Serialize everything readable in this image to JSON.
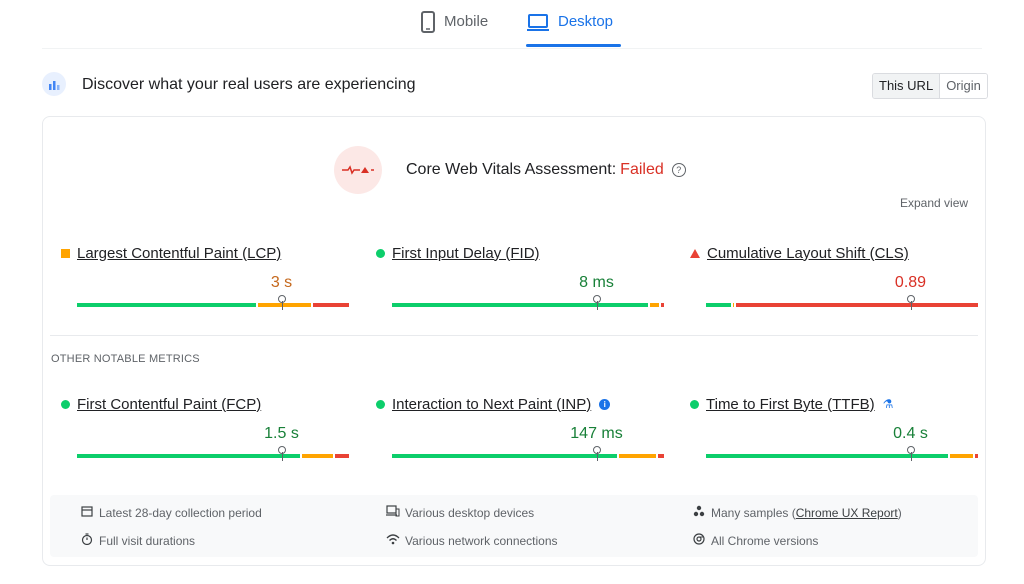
{
  "tabs": {
    "mobile": "Mobile",
    "desktop": "Desktop",
    "active": "Desktop"
  },
  "header": {
    "title": "Discover what your real users are experiencing",
    "scope": {
      "this_url": "This URL",
      "origin": "Origin",
      "active": "This URL"
    }
  },
  "assessment": {
    "label": "Core Web Vitals Assessment:",
    "status": "Failed",
    "expand": "Expand view"
  },
  "core_metrics": [
    {
      "name": "Largest Contentful Paint (LCP)",
      "value": "3 s",
      "rating": "needs-improvement",
      "indicator": "square",
      "distribution": {
        "good": 0.66,
        "needs_improvement": 0.2,
        "poor": 0.14
      },
      "marker": 0.75
    },
    {
      "name": "First Input Delay (FID)",
      "value": "8 ms",
      "rating": "good",
      "indicator": "dot",
      "distribution": {
        "good": 0.94,
        "needs_improvement": 0.04,
        "poor": 0.02
      },
      "marker": 0.75
    },
    {
      "name": "Cumulative Layout Shift (CLS)",
      "value": "0.89",
      "rating": "poor",
      "indicator": "triangle",
      "distribution": {
        "good": 0.1,
        "needs_improvement": 0.01,
        "poor": 0.89
      },
      "marker": 0.75
    }
  ],
  "other_label": "OTHER NOTABLE METRICS",
  "other_metrics": [
    {
      "name": "First Contentful Paint (FCP)",
      "value": "1.5 s",
      "rating": "good",
      "indicator": "dot",
      "distribution": {
        "good": 0.82,
        "needs_improvement": 0.12,
        "poor": 0.06
      },
      "marker": 0.75,
      "extra": ""
    },
    {
      "name": "Interaction to Next Paint (INP)",
      "value": "147 ms",
      "rating": "good",
      "indicator": "dot",
      "distribution": {
        "good": 0.83,
        "needs_improvement": 0.14,
        "poor": 0.03
      },
      "marker": 0.75,
      "extra": "info-icon"
    },
    {
      "name": "Time to First Byte (TTFB)",
      "value": "0.4 s",
      "rating": "good",
      "indicator": "dot",
      "distribution": {
        "good": 0.89,
        "needs_improvement": 0.09,
        "poor": 0.02
      },
      "marker": 0.75,
      "extra": "lab-icon"
    }
  ],
  "footer": {
    "collection": "Latest 28-day collection period",
    "durations": "Full visit durations",
    "devices": "Various desktop devices",
    "network": "Various network connections",
    "samples_prefix": "Many samples (",
    "samples_link": "Chrome UX Report",
    "samples_suffix": ")",
    "chrome": "All Chrome versions"
  },
  "colors": {
    "good": "#0cce6b",
    "needs_improvement": "#ffa400",
    "poor": "#e94235",
    "good_text": "#188038",
    "ni_text": "#c5681c",
    "poor_text": "#d93025",
    "accent": "#1a73e8"
  }
}
